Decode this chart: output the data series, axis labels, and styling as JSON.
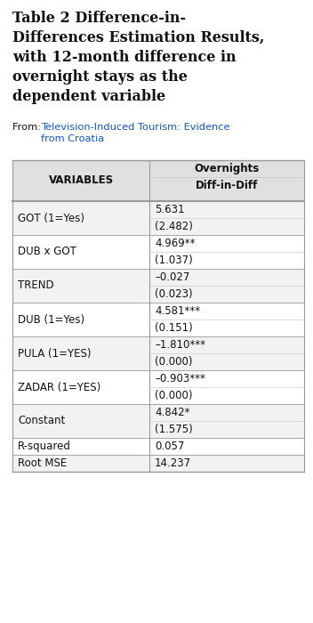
{
  "title_lines": [
    "Table 2 Difference-in-",
    "Differences Estimation Results,",
    "with 12-month difference in",
    "overnight stays as the",
    "dependent variable"
  ],
  "source_prefix": "From: ",
  "source_link": "Television-Induced Tourism: Evidence\nfrom Croatia",
  "col1_header": "VARIABLES",
  "col2_header_top": "Overnights",
  "col2_header_bot": "Diff-in-Diff",
  "rows": [
    {
      "var": "GOT (1=Yes)",
      "coef": "5.631",
      "se": "(2.482)"
    },
    {
      "var": "DUB x GOT",
      "coef": "4.969**",
      "se": "(1.037)"
    },
    {
      "var": "TREND",
      "coef": "–0.027",
      "se": "(0.023)"
    },
    {
      "var": "DUB (1=Yes)",
      "coef": "4.581***",
      "se": "(0.151)"
    },
    {
      "var": "PULA (1=YES)",
      "coef": "–1.810***",
      "se": "(0.000)"
    },
    {
      "var": "ZADAR (1=YES)",
      "coef": "–0.903***",
      "se": "(0.000)"
    },
    {
      "var": "Constant",
      "coef": "4.842*",
      "se": "(1.575)"
    },
    {
      "var": "R-squared",
      "coef": "0.057",
      "se": null
    },
    {
      "var": "Root MSE",
      "coef": "14.237",
      "se": null
    }
  ],
  "bg_color": "#ffffff",
  "header_bg": "#e0e0e0",
  "row_bg_odd": "#f2f2f2",
  "row_bg_even": "#ffffff",
  "border_dark": "#999999",
  "border_light": "#cccccc",
  "title_color": "#111111",
  "text_color": "#111111",
  "link_color": "#1155cc",
  "title_fontsize": 11.5,
  "body_fontsize": 8.5,
  "source_fontsize": 8.2,
  "fig_width": 3.52,
  "fig_height": 7.0,
  "dpi": 100
}
